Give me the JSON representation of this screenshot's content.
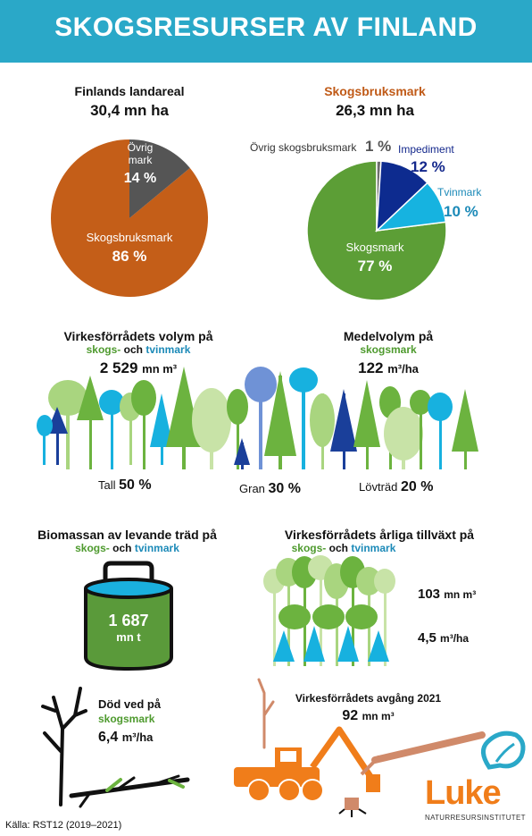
{
  "header": {
    "title": "SKOGSRESURSER AV FINLAND"
  },
  "land_area": {
    "title": "Finlands landareal",
    "value": "30,4 mn ha",
    "slices": [
      {
        "label": "Skogsbruksmark",
        "pct": 86,
        "pct_text": "86 %",
        "color": "#c45e18"
      },
      {
        "label_line1": "Övrig",
        "label_line2": "mark",
        "pct": 14,
        "pct_text": "14 %",
        "color": "#555555"
      }
    ]
  },
  "forestry_land": {
    "title": "Skogsbruksmark",
    "value": "26,3 mn ha",
    "slices": [
      {
        "label": "Skogsmark",
        "pct": 77,
        "pct_text": "77 %",
        "color": "#5c9e36"
      },
      {
        "label": "Övrig skogsbruksmark",
        "pct": 1,
        "pct_text": "1 %",
        "color": "#6e6e6e"
      },
      {
        "label": "Impediment",
        "pct": 12,
        "pct_text": "12 %",
        "color": "#0d2b8f"
      },
      {
        "label": "Tvinmark",
        "pct": 10,
        "pct_text": "10 %",
        "color": "#16b3e0"
      }
    ]
  },
  "volume": {
    "title": "Virkesförrådets volym på",
    "sub_a": "skogs-",
    "sub_and": "och",
    "sub_b": "tvinmark",
    "value_num": "2 529",
    "value_unit": "mn m³"
  },
  "mean_volume": {
    "title": "Medelvolym på",
    "sub": "skogsmark",
    "value_num": "122",
    "value_unit": "m³/ha"
  },
  "species": [
    {
      "label": "Tall",
      "pct": "50 %"
    },
    {
      "label": "Gran",
      "pct": "30 %"
    },
    {
      "label": "Lövträd",
      "pct": "20 %"
    }
  ],
  "biomass": {
    "title": "Biomassan av levande träd på",
    "sub_a": "skogs-",
    "sub_and": "och",
    "sub_b": "tvinmark",
    "value": "1 687",
    "unit": "mn t"
  },
  "growth": {
    "title": "Virkesförrådets årliga tillväxt på",
    "sub_a": "skogs-",
    "sub_and": "och",
    "sub_b": "tvinmark",
    "value1_num": "103",
    "value1_unit": "mn m³",
    "value2_num": "4,5",
    "value2_unit": "m³/ha"
  },
  "dead_wood": {
    "title": "Död ved på",
    "sub": "skogsmark",
    "value_num": "6,4",
    "value_unit": "m³/ha"
  },
  "drain": {
    "title": "Virkesförrådets avgång 2021",
    "value_num": "92",
    "value_unit": "mn m³"
  },
  "logo": {
    "name": "Luke",
    "tagline": "NATURRESURSINSTITUTET"
  },
  "source": "Källa: RST12 (2019–2021)",
  "colors": {
    "header": "#2aa8c8",
    "orange": "#c05a17",
    "green": "#4e9a2e",
    "blue": "#1c8ab8",
    "navy": "#14288c",
    "machine": "#f07d1a"
  }
}
